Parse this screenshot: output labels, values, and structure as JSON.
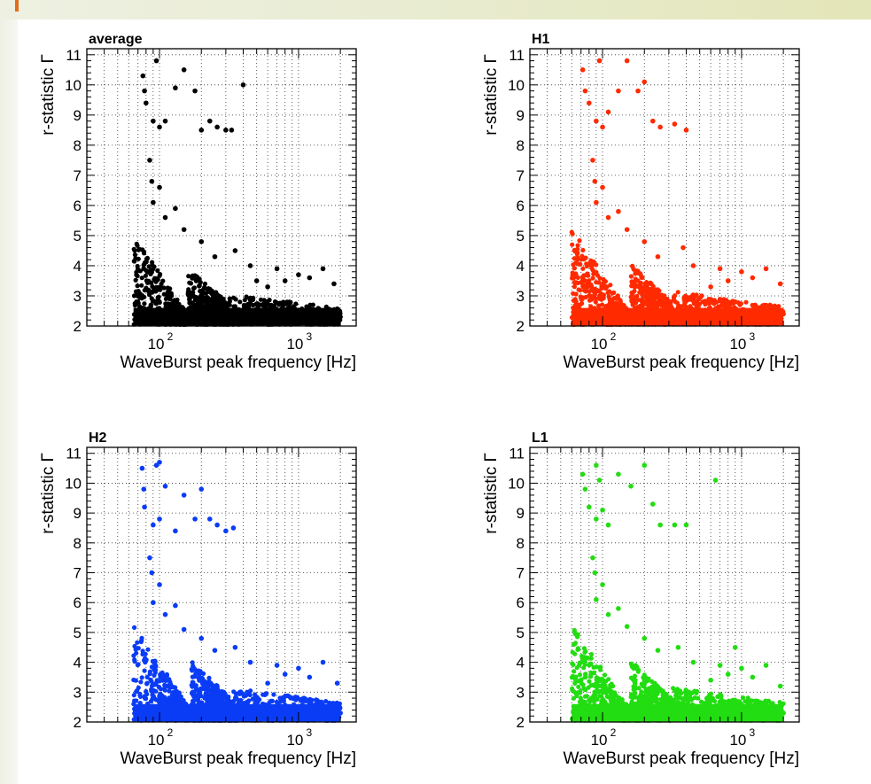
{
  "chart_data": [
    {
      "type": "scatter",
      "title": "average",
      "xlabel": "WaveBurst peak frequency [Hz]",
      "ylabel": "r-statistic Γ",
      "xscale": "log",
      "xlim": [
        30,
        2600
      ],
      "ylim": [
        2,
        11.2
      ],
      "grid": true,
      "color": "#000000",
      "x_tick_labels": [
        {
          "base": "10",
          "exp": "2",
          "value": 100
        },
        {
          "base": "10",
          "exp": "3",
          "value": 1000
        }
      ],
      "y_tick_labels": [
        "2",
        "3",
        "4",
        "5",
        "6",
        "7",
        "8",
        "9",
        "10",
        "11"
      ],
      "points": [
        [
          76,
          10.3
        ],
        [
          78,
          9.8
        ],
        [
          80,
          9.4
        ],
        [
          95,
          10.8
        ],
        [
          90,
          8.8
        ],
        [
          100,
          8.6
        ],
        [
          110,
          8.8
        ],
        [
          130,
          9.9
        ],
        [
          150,
          10.5
        ],
        [
          180,
          9.8
        ],
        [
          200,
          8.5
        ],
        [
          230,
          8.8
        ],
        [
          260,
          8.6
        ],
        [
          300,
          8.5
        ],
        [
          330,
          8.5
        ],
        [
          400,
          10.0
        ],
        [
          85,
          7.5
        ],
        [
          88,
          6.8
        ],
        [
          100,
          6.6
        ],
        [
          90,
          6.1
        ],
        [
          130,
          5.9
        ],
        [
          110,
          5.6
        ],
        [
          150,
          5.2
        ],
        [
          200,
          4.8
        ],
        [
          250,
          4.3
        ],
        [
          350,
          4.5
        ],
        [
          450,
          4.0
        ],
        [
          700,
          3.9
        ],
        [
          1000,
          3.7
        ],
        [
          1500,
          3.9
        ],
        [
          1800,
          3.4
        ],
        [
          2000,
          2.3
        ],
        [
          500,
          3.5
        ],
        [
          600,
          3.3
        ],
        [
          800,
          3.5
        ],
        [
          1200,
          3.6
        ]
      ],
      "density_bands": [
        [
          65,
          160,
          5.0,
          0.9
        ],
        [
          160,
          320,
          3.9,
          0.65
        ],
        [
          320,
          2000,
          3.0,
          0.45
        ]
      ]
    },
    {
      "type": "scatter",
      "title": "H1",
      "xlabel": "WaveBurst peak frequency [Hz]",
      "ylabel": "r-statistic Γ",
      "xscale": "log",
      "xlim": [
        30,
        2600
      ],
      "ylim": [
        2,
        11.2
      ],
      "grid": true,
      "color": "#ff2a00",
      "x_tick_labels": [
        {
          "base": "10",
          "exp": "2",
          "value": 100
        },
        {
          "base": "10",
          "exp": "3",
          "value": 1000
        }
      ],
      "y_tick_labels": [
        "2",
        "3",
        "4",
        "5",
        "6",
        "7",
        "8",
        "9",
        "10",
        "11"
      ],
      "points": [
        [
          72,
          10.5
        ],
        [
          75,
          9.8
        ],
        [
          80,
          9.4
        ],
        [
          95,
          10.8
        ],
        [
          90,
          8.8
        ],
        [
          100,
          8.6
        ],
        [
          110,
          9.1
        ],
        [
          130,
          9.8
        ],
        [
          150,
          10.8
        ],
        [
          180,
          9.8
        ],
        [
          200,
          10.1
        ],
        [
          230,
          8.8
        ],
        [
          260,
          8.6
        ],
        [
          330,
          8.7
        ],
        [
          400,
          8.5
        ],
        [
          85,
          7.5
        ],
        [
          88,
          6.8
        ],
        [
          100,
          6.6
        ],
        [
          90,
          6.1
        ],
        [
          130,
          5.8
        ],
        [
          110,
          5.6
        ],
        [
          150,
          5.2
        ],
        [
          200,
          4.8
        ],
        [
          250,
          4.3
        ],
        [
          380,
          4.6
        ],
        [
          450,
          4.0
        ],
        [
          700,
          3.9
        ],
        [
          1000,
          3.8
        ],
        [
          1500,
          3.9
        ],
        [
          1900,
          3.4
        ],
        [
          2000,
          2.4
        ],
        [
          600,
          3.3
        ],
        [
          800,
          3.5
        ],
        [
          1200,
          3.6
        ]
      ],
      "density_bands": [
        [
          60,
          160,
          5.2,
          0.9
        ],
        [
          160,
          320,
          4.0,
          0.65
        ],
        [
          320,
          2000,
          3.1,
          0.45
        ]
      ]
    },
    {
      "type": "scatter",
      "title": "H2",
      "xlabel": "WaveBurst peak frequency [Hz]",
      "ylabel": "r-statistic Γ",
      "xscale": "log",
      "xlim": [
        30,
        2600
      ],
      "ylim": [
        2,
        11.2
      ],
      "grid": true,
      "color": "#0a3cf5",
      "x_tick_labels": [
        {
          "base": "10",
          "exp": "2",
          "value": 100
        },
        {
          "base": "10",
          "exp": "3",
          "value": 1000
        }
      ],
      "y_tick_labels": [
        "2",
        "3",
        "4",
        "5",
        "6",
        "7",
        "8",
        "9",
        "10",
        "11"
      ],
      "points": [
        [
          75,
          10.5
        ],
        [
          77,
          9.8
        ],
        [
          78,
          9.2
        ],
        [
          95,
          10.6
        ],
        [
          100,
          10.7
        ],
        [
          90,
          8.6
        ],
        [
          100,
          8.8
        ],
        [
          110,
          9.9
        ],
        [
          130,
          8.4
        ],
        [
          150,
          9.6
        ],
        [
          180,
          8.8
        ],
        [
          200,
          9.8
        ],
        [
          230,
          8.8
        ],
        [
          260,
          8.6
        ],
        [
          300,
          8.4
        ],
        [
          340,
          8.5
        ],
        [
          85,
          7.5
        ],
        [
          88,
          7.0
        ],
        [
          100,
          6.6
        ],
        [
          90,
          6.0
        ],
        [
          130,
          5.9
        ],
        [
          110,
          5.6
        ],
        [
          150,
          5.1
        ],
        [
          200,
          4.8
        ],
        [
          250,
          4.4
        ],
        [
          350,
          4.5
        ],
        [
          450,
          4.0
        ],
        [
          700,
          3.9
        ],
        [
          1000,
          3.8
        ],
        [
          1500,
          4.0
        ],
        [
          1900,
          3.3
        ],
        [
          2000,
          2.3
        ],
        [
          600,
          3.3
        ],
        [
          800,
          3.6
        ],
        [
          1200,
          3.5
        ]
      ],
      "density_bands": [
        [
          65,
          170,
          5.2,
          0.9
        ],
        [
          170,
          330,
          4.0,
          0.65
        ],
        [
          330,
          2000,
          3.1,
          0.45
        ]
      ]
    },
    {
      "type": "scatter",
      "title": "L1",
      "xlabel": "WaveBurst peak frequency [Hz]",
      "ylabel": "r-statistic Γ",
      "xscale": "log",
      "xlim": [
        30,
        2600
      ],
      "ylim": [
        2,
        11.2
      ],
      "grid": true,
      "color": "#22dd11",
      "x_tick_labels": [
        {
          "base": "10",
          "exp": "2",
          "value": 100
        },
        {
          "base": "10",
          "exp": "3",
          "value": 1000
        }
      ],
      "y_tick_labels": [
        "2",
        "3",
        "4",
        "5",
        "6",
        "7",
        "8",
        "9",
        "10",
        "11"
      ],
      "points": [
        [
          72,
          10.3
        ],
        [
          75,
          9.8
        ],
        [
          80,
          9.2
        ],
        [
          90,
          10.6
        ],
        [
          95,
          10.1
        ],
        [
          90,
          8.8
        ],
        [
          100,
          9.1
        ],
        [
          110,
          8.6
        ],
        [
          130,
          10.3
        ],
        [
          160,
          9.9
        ],
        [
          200,
          10.6
        ],
        [
          230,
          9.3
        ],
        [
          260,
          8.6
        ],
        [
          330,
          8.6
        ],
        [
          400,
          8.6
        ],
        [
          650,
          10.1
        ],
        [
          85,
          7.5
        ],
        [
          88,
          7.0
        ],
        [
          100,
          6.6
        ],
        [
          90,
          6.1
        ],
        [
          130,
          5.8
        ],
        [
          110,
          5.6
        ],
        [
          150,
          5.2
        ],
        [
          200,
          4.8
        ],
        [
          250,
          4.4
        ],
        [
          350,
          4.5
        ],
        [
          450,
          4.0
        ],
        [
          700,
          3.9
        ],
        [
          900,
          4.5
        ],
        [
          1000,
          3.8
        ],
        [
          1500,
          3.9
        ],
        [
          1900,
          3.2
        ],
        [
          2000,
          2.3
        ],
        [
          600,
          3.4
        ],
        [
          800,
          3.6
        ],
        [
          1200,
          3.5
        ]
      ],
      "density_bands": [
        [
          60,
          160,
          5.2,
          0.9
        ],
        [
          160,
          320,
          4.0,
          0.65
        ],
        [
          320,
          2000,
          3.1,
          0.45
        ]
      ]
    }
  ]
}
